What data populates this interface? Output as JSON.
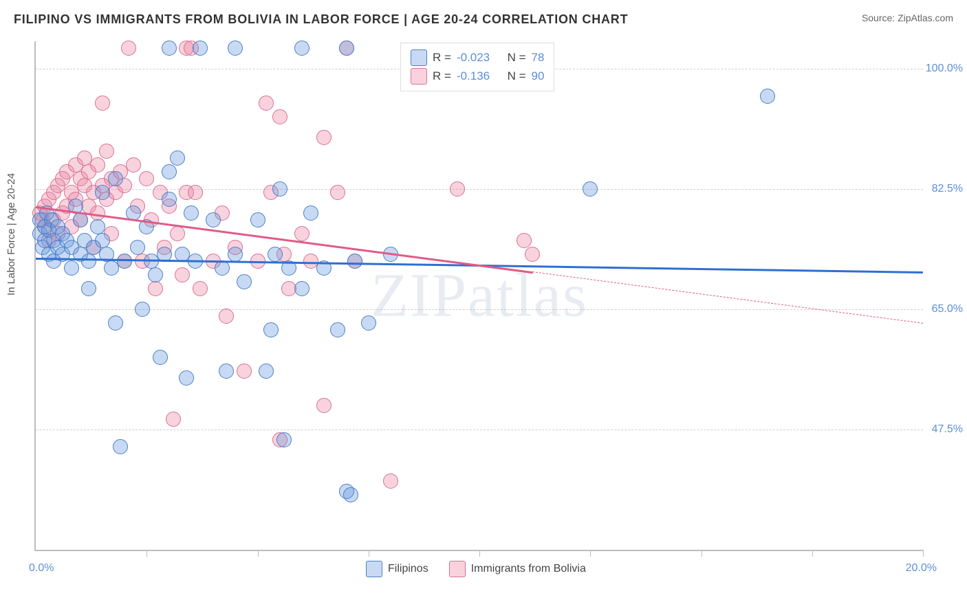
{
  "header": {
    "title": "FILIPINO VS IMMIGRANTS FROM BOLIVIA IN LABOR FORCE | AGE 20-24 CORRELATION CHART",
    "source_prefix": "Source: ",
    "source_name": "ZipAtlas.com"
  },
  "y_axis": {
    "label": "In Labor Force | Age 20-24",
    "min": 30,
    "max": 104,
    "grid": [
      {
        "value": 47.5,
        "label": "47.5%"
      },
      {
        "value": 65.0,
        "label": "65.0%"
      },
      {
        "value": 82.5,
        "label": "82.5%"
      },
      {
        "value": 100.0,
        "label": "100.0%"
      }
    ]
  },
  "x_axis": {
    "min": 0.0,
    "max": 20.0,
    "min_label": "0.0%",
    "max_label": "20.0%",
    "ticks": [
      2.5,
      5.0,
      7.5,
      10.0,
      12.5,
      15.0,
      17.5,
      20.0
    ]
  },
  "series": {
    "a": {
      "label": "Filipinos",
      "fill": "rgba(96,150,220,0.35)",
      "stroke": "#4a7fc7",
      "line_color": "#2e6fd1",
      "r": -0.023,
      "n": 78,
      "r_label": "-0.023",
      "n_label": "78",
      "reg_start": {
        "x": 0.0,
        "y": 72.5
      },
      "reg_end": {
        "x": 20.0,
        "y": 70.5
      },
      "reg_solid_xmax": 20.0,
      "points": [
        [
          0.1,
          78
        ],
        [
          0.1,
          76
        ],
        [
          0.15,
          74
        ],
        [
          0.2,
          77
        ],
        [
          0.2,
          75
        ],
        [
          0.25,
          79
        ],
        [
          0.3,
          76.5
        ],
        [
          0.3,
          73
        ],
        [
          0.35,
          78
        ],
        [
          0.4,
          75
        ],
        [
          0.4,
          72
        ],
        [
          0.5,
          77
        ],
        [
          0.5,
          74
        ],
        [
          0.6,
          76
        ],
        [
          0.6,
          73
        ],
        [
          0.7,
          75
        ],
        [
          0.8,
          74
        ],
        [
          0.8,
          71
        ],
        [
          0.9,
          80
        ],
        [
          1.0,
          78
        ],
        [
          1.0,
          73
        ],
        [
          1.1,
          75
        ],
        [
          1.2,
          72
        ],
        [
          1.2,
          68
        ],
        [
          1.3,
          74
        ],
        [
          1.4,
          77
        ],
        [
          1.5,
          82
        ],
        [
          1.5,
          75
        ],
        [
          1.6,
          73
        ],
        [
          1.7,
          71
        ],
        [
          1.8,
          84
        ],
        [
          1.8,
          63
        ],
        [
          1.9,
          45
        ],
        [
          2.0,
          72
        ],
        [
          2.2,
          79
        ],
        [
          2.3,
          74
        ],
        [
          2.4,
          65
        ],
        [
          2.5,
          77
        ],
        [
          2.6,
          72
        ],
        [
          2.7,
          70
        ],
        [
          2.8,
          58
        ],
        [
          2.9,
          73
        ],
        [
          3.0,
          81
        ],
        [
          3.0,
          103
        ],
        [
          3.0,
          85
        ],
        [
          3.2,
          87
        ],
        [
          3.3,
          73
        ],
        [
          3.4,
          55
        ],
        [
          3.5,
          79
        ],
        [
          3.6,
          72
        ],
        [
          3.7,
          103
        ],
        [
          4.0,
          78
        ],
        [
          4.2,
          71
        ],
        [
          4.3,
          56
        ],
        [
          4.5,
          103
        ],
        [
          4.5,
          73
        ],
        [
          4.7,
          69
        ],
        [
          5.0,
          78
        ],
        [
          5.2,
          56
        ],
        [
          5.3,
          62
        ],
        [
          5.4,
          73
        ],
        [
          5.5,
          82.5
        ],
        [
          5.6,
          46
        ],
        [
          5.7,
          71
        ],
        [
          6.0,
          103
        ],
        [
          6.0,
          68
        ],
        [
          6.2,
          79
        ],
        [
          6.5,
          71
        ],
        [
          6.8,
          62
        ],
        [
          7.0,
          103
        ],
        [
          7.0,
          38.5
        ],
        [
          7.1,
          38
        ],
        [
          7.2,
          72
        ],
        [
          7.5,
          63
        ],
        [
          8.0,
          73
        ],
        [
          12.5,
          82.5
        ],
        [
          16.5,
          96
        ]
      ]
    },
    "b": {
      "label": "Immigrants from Bolivia",
      "fill": "rgba(235,130,160,0.35)",
      "stroke": "#d96f93",
      "line_color": "#e05a87",
      "r": -0.136,
      "n": 90,
      "r_label": "-0.136",
      "n_label": "90",
      "reg_start": {
        "x": 0.0,
        "y": 80.0
      },
      "reg_end": {
        "x": 20.0,
        "y": 63.0
      },
      "reg_solid_xmax": 11.2,
      "points": [
        [
          0.1,
          79
        ],
        [
          0.15,
          78
        ],
        [
          0.2,
          80
        ],
        [
          0.2,
          77
        ],
        [
          0.3,
          81
        ],
        [
          0.3,
          75
        ],
        [
          0.4,
          82
        ],
        [
          0.4,
          78
        ],
        [
          0.5,
          83
        ],
        [
          0.5,
          76
        ],
        [
          0.6,
          84
        ],
        [
          0.6,
          79
        ],
        [
          0.7,
          80
        ],
        [
          0.7,
          85
        ],
        [
          0.8,
          82
        ],
        [
          0.8,
          77
        ],
        [
          0.9,
          86
        ],
        [
          0.9,
          81
        ],
        [
          1.0,
          84
        ],
        [
          1.0,
          78
        ],
        [
          1.1,
          83
        ],
        [
          1.1,
          87
        ],
        [
          1.2,
          85
        ],
        [
          1.2,
          80
        ],
        [
          1.3,
          82
        ],
        [
          1.3,
          74
        ],
        [
          1.4,
          86
        ],
        [
          1.4,
          79
        ],
        [
          1.5,
          95
        ],
        [
          1.5,
          83
        ],
        [
          1.6,
          88
        ],
        [
          1.6,
          81
        ],
        [
          1.7,
          84
        ],
        [
          1.7,
          76
        ],
        [
          1.8,
          82
        ],
        [
          1.9,
          85
        ],
        [
          2.0,
          83
        ],
        [
          2.0,
          72
        ],
        [
          2.1,
          103
        ],
        [
          2.2,
          86
        ],
        [
          2.3,
          80
        ],
        [
          2.4,
          72
        ],
        [
          2.5,
          84
        ],
        [
          2.6,
          78
        ],
        [
          2.7,
          68
        ],
        [
          2.8,
          82
        ],
        [
          2.9,
          74
        ],
        [
          3.0,
          80
        ],
        [
          3.1,
          49
        ],
        [
          3.2,
          76
        ],
        [
          3.3,
          70
        ],
        [
          3.4,
          82
        ],
        [
          3.4,
          103
        ],
        [
          3.5,
          103
        ],
        [
          3.6,
          82
        ],
        [
          3.7,
          68
        ],
        [
          4.0,
          72
        ],
        [
          4.2,
          79
        ],
        [
          4.3,
          64
        ],
        [
          4.5,
          74
        ],
        [
          4.7,
          56
        ],
        [
          5.0,
          72
        ],
        [
          5.2,
          95
        ],
        [
          5.3,
          82
        ],
        [
          5.5,
          93
        ],
        [
          5.5,
          46
        ],
        [
          5.6,
          73
        ],
        [
          5.7,
          68
        ],
        [
          6.0,
          76
        ],
        [
          6.2,
          72
        ],
        [
          6.5,
          90
        ],
        [
          6.5,
          51
        ],
        [
          6.8,
          82
        ],
        [
          7.0,
          103
        ],
        [
          7.2,
          72
        ],
        [
          8.0,
          40
        ],
        [
          9.5,
          82.5
        ],
        [
          11.0,
          75
        ],
        [
          11.2,
          73
        ]
      ]
    }
  },
  "legend_top_labels": {
    "R": "R =",
    "N": "N ="
  },
  "watermark": {
    "bold": "ZIP",
    "thin": "atlas"
  }
}
